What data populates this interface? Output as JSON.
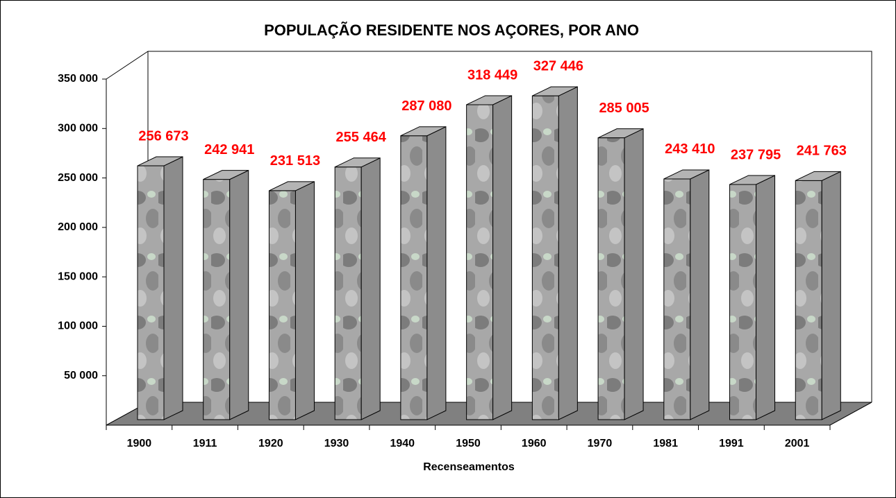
{
  "chart_data": {
    "type": "bar3d",
    "title": "POPULAÇÃO RESIDENTE NOS AÇORES, POR ANO",
    "x_label": "Recenseamentos",
    "categories": [
      "1900",
      "1911",
      "1920",
      "1930",
      "1940",
      "1950",
      "1960",
      "1970",
      "1981",
      "1991",
      "2001"
    ],
    "values": [
      256673,
      242941,
      231513,
      255464,
      287080,
      318449,
      327446,
      285005,
      243410,
      237795,
      241763
    ],
    "value_labels": [
      "256 673",
      "242 941",
      "231 513",
      "255 464",
      "287 080",
      "318 449",
      "327 446",
      "285 005",
      "243 410",
      "237 795",
      "241 763"
    ],
    "color": "#9a9a9a",
    "label_color": "#ff0000",
    "ylim": [
      0,
      350000
    ],
    "yticks": [
      {
        "value": 50000,
        "label": "50 000"
      },
      {
        "value": 100000,
        "label": "100 000"
      },
      {
        "value": 150000,
        "label": "150 000"
      },
      {
        "value": 200000,
        "label": "200 000"
      },
      {
        "value": 250000,
        "label": "250 000"
      },
      {
        "value": 300000,
        "label": "300 000"
      },
      {
        "value": 350000,
        "label": "350 000"
      }
    ]
  }
}
